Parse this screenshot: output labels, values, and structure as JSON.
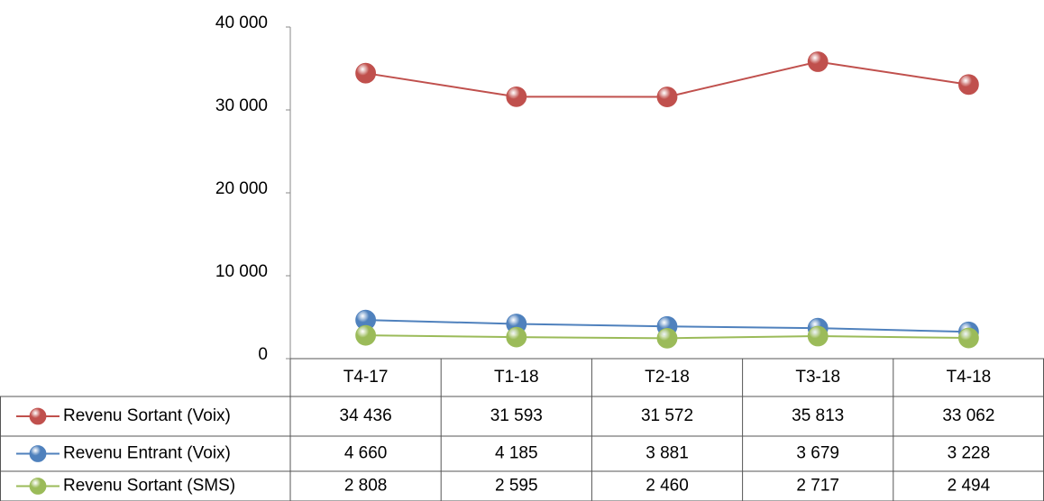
{
  "chart_data": {
    "type": "line",
    "categories": [
      "T4-17",
      "T1-18",
      "T2-18",
      "T3-18",
      "T4-18"
    ],
    "series": [
      {
        "name": "Revenu Sortant (Voix)",
        "color": "#c0504d",
        "values": [
          34436,
          31593,
          31572,
          35813,
          33062
        ],
        "value_labels": [
          "34 436",
          "31 593",
          "31 572",
          "35 813",
          "33 062"
        ]
      },
      {
        "name": "Revenu Entrant (Voix)",
        "color": "#4f81bd",
        "values": [
          4660,
          4185,
          3881,
          3679,
          3228
        ],
        "value_labels": [
          "4 660",
          "4 185",
          "3 881",
          "3 679",
          "3 228"
        ]
      },
      {
        "name": "Revenu Sortant (SMS)",
        "color": "#9bbb59",
        "values": [
          2808,
          2595,
          2460,
          2717,
          2494
        ],
        "value_labels": [
          "2 808",
          "2 595",
          "2 460",
          "2 717",
          "2 494"
        ]
      }
    ],
    "ylim": [
      0,
      40000
    ],
    "yticks": [
      0,
      {
        "value": 10000,
        "label": "10 000"
      },
      {
        "value": 20000,
        "label": "20 000"
      },
      {
        "value": 30000,
        "label": "30 000"
      },
      {
        "value": 40000,
        "label": "40 000"
      }
    ],
    "data_table": true
  }
}
